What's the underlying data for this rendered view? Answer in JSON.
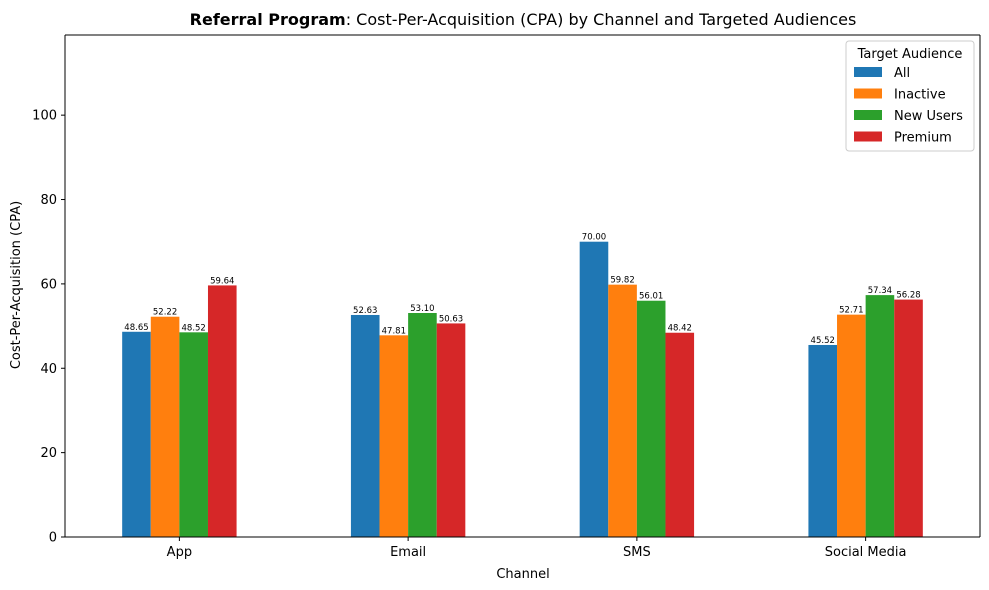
{
  "chart_data": {
    "type": "bar",
    "title_bold": "Referral Program",
    "title_rest": ": Cost-Per-Acquisition (CPA) by Channel and Targeted Audiences",
    "xlabel": "Channel",
    "ylabel": "Cost-Per-Acquisition (CPA)",
    "ylim": [
      0,
      119
    ],
    "yticks": [
      0,
      20,
      40,
      60,
      80,
      100
    ],
    "categories": [
      "App",
      "Email",
      "SMS",
      "Social Media"
    ],
    "legend_title": "Target Audience",
    "legend_position": "top-right",
    "grid": false,
    "series": [
      {
        "name": "All",
        "color": "#1f77b4",
        "values": [
          48.65,
          52.63,
          70.0,
          45.52
        ],
        "labels": [
          "48.65",
          "52.63",
          "70.00",
          "45.52"
        ]
      },
      {
        "name": "Inactive",
        "color": "#ff7f0e",
        "values": [
          52.22,
          47.81,
          59.82,
          52.71
        ],
        "labels": [
          "52.22",
          "47.81",
          "59.82",
          "52.71"
        ]
      },
      {
        "name": "New Users",
        "color": "#2ca02c",
        "values": [
          48.52,
          53.1,
          56.01,
          57.34
        ],
        "labels": [
          "48.52",
          "53.10",
          "56.01",
          "57.34"
        ]
      },
      {
        "name": "Premium",
        "color": "#d62728",
        "values": [
          59.64,
          50.63,
          48.42,
          56.28
        ],
        "labels": [
          "59.64",
          "50.63",
          "48.42",
          "56.28"
        ]
      }
    ]
  }
}
